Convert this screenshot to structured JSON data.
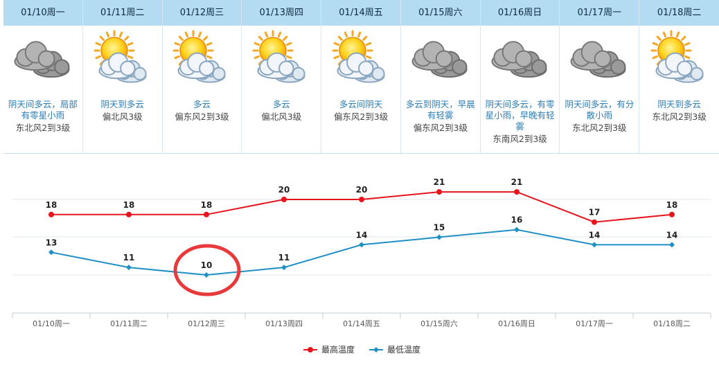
{
  "days": [
    {
      "date": "01/10周一",
      "icon": "rain-cloud-icon",
      "weather": "阴天间多云，局部有零星小雨",
      "wind": "东北风2到3级"
    },
    {
      "date": "01/11周二",
      "icon": "sun-cloud-icon",
      "weather": "阴天到多云",
      "wind": "偏北风3级"
    },
    {
      "date": "01/12周三",
      "icon": "sun-cloud-icon",
      "weather": "多云",
      "wind": "偏东风2到3级"
    },
    {
      "date": "01/13周四",
      "icon": "sun-cloud-icon",
      "weather": "多云",
      "wind": "偏北风3级"
    },
    {
      "date": "01/14周五",
      "icon": "sun-cloud-icon",
      "weather": "多云间阴天",
      "wind": "偏东风2到3级"
    },
    {
      "date": "01/15周六",
      "icon": "rain-cloud-icon",
      "weather": "多云到阴天，早晨有轻雾",
      "wind": "偏东风2到3级"
    },
    {
      "date": "01/16周日",
      "icon": "rain-cloud-icon",
      "weather": "阴天间多云，有零星小雨，早晚有轻雾",
      "wind": "东南风2到3级"
    },
    {
      "date": "01/17周一",
      "icon": "rain-cloud-icon",
      "weather": "阴天间多云，有分散小雨",
      "wind": "东北风2到3级"
    },
    {
      "date": "01/18周二",
      "icon": "sun-cloud-icon",
      "weather": "阴天到多云",
      "wind": "东北风2到3级"
    }
  ],
  "chart_data": {
    "type": "line",
    "categories": [
      "01/10周一",
      "01/11周二",
      "01/12周三",
      "01/13周四",
      "01/14周五",
      "01/15周六",
      "01/16周日",
      "01/17周一",
      "01/18周二"
    ],
    "series": [
      {
        "name": "最高温度",
        "color": "#e8141b",
        "values": [
          18,
          18,
          18,
          20,
          20,
          21,
          21,
          17,
          18
        ]
      },
      {
        "name": "最低温度",
        "color": "#1f8fc6",
        "values": [
          13,
          11,
          10,
          11,
          14,
          15,
          16,
          14,
          14
        ]
      }
    ],
    "grid": true,
    "legend": "bottom-center"
  },
  "annotation": {
    "type": "circle",
    "color": "#e83a3a",
    "target": "01/12周三 最低温度"
  }
}
